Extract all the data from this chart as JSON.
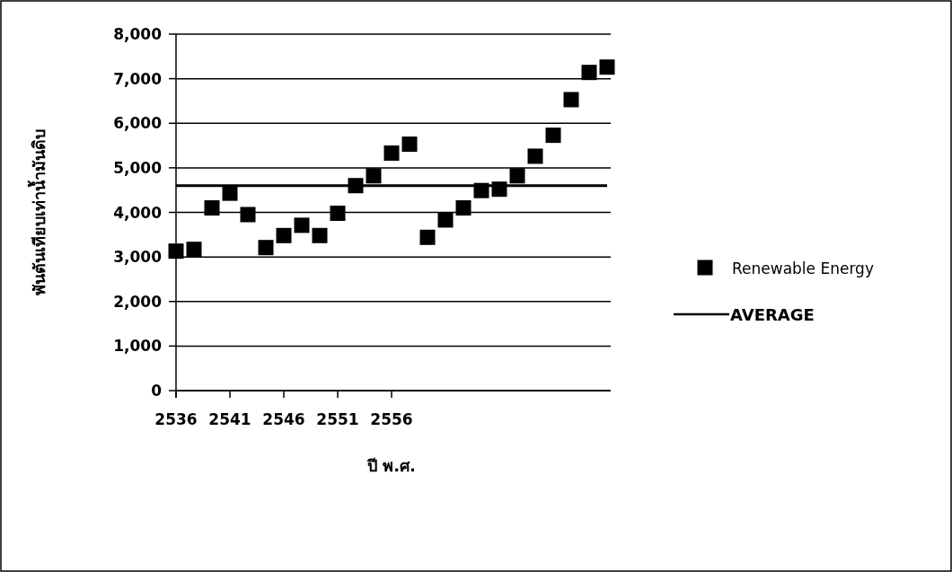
{
  "chart_data": {
    "type": "scatter",
    "xlabel": "ปี พ.ศ.",
    "ylabel": "พันตันเทียบเท่าน้ำมันดิบ",
    "categories": [
      "2536",
      null,
      null,
      "2541",
      null,
      null,
      "2546",
      null,
      null,
      "2551",
      null,
      null,
      "2556",
      null,
      null,
      null,
      null,
      null,
      null,
      null,
      null,
      null,
      null,
      null,
      null
    ],
    "series": [
      {
        "name": "Renewable Energy",
        "type": "scatter",
        "marker": "square",
        "color": "#000000",
        "values": [
          3130,
          3170,
          4100,
          4430,
          3950,
          3210,
          3480,
          3710,
          3480,
          3980,
          4600,
          4820,
          5330,
          5530,
          3440,
          3830,
          4100,
          4490,
          4520,
          4820,
          5260,
          5730,
          6530,
          7140,
          7260
        ]
      },
      {
        "name": "AVERAGE",
        "type": "line",
        "marker": "none",
        "line_style": "solid",
        "color": "#000000",
        "values": [
          4600,
          4600,
          4600,
          4600,
          4600,
          4600,
          4600,
          4600,
          4600,
          4600,
          4600,
          4600,
          4600,
          4600,
          4600,
          4600,
          4600,
          4600,
          4600,
          4600,
          4600,
          4600,
          4600,
          4600,
          4600
        ]
      }
    ],
    "ylim": [
      0,
      8000
    ],
    "yticks": [
      0,
      {
        "value": 1000,
        "label": "1,000"
      },
      {
        "value": 2000,
        "label": "2,000"
      },
      {
        "value": 3000,
        "label": "3,000"
      },
      {
        "value": 4000,
        "label": "4,000"
      },
      {
        "value": 5000,
        "label": "5,000"
      },
      {
        "value": 6000,
        "label": "6,000"
      },
      {
        "value": 7000,
        "label": "7,000"
      },
      {
        "value": 8000,
        "label": "8,000"
      }
    ],
    "grid": "y",
    "legend": "right"
  }
}
